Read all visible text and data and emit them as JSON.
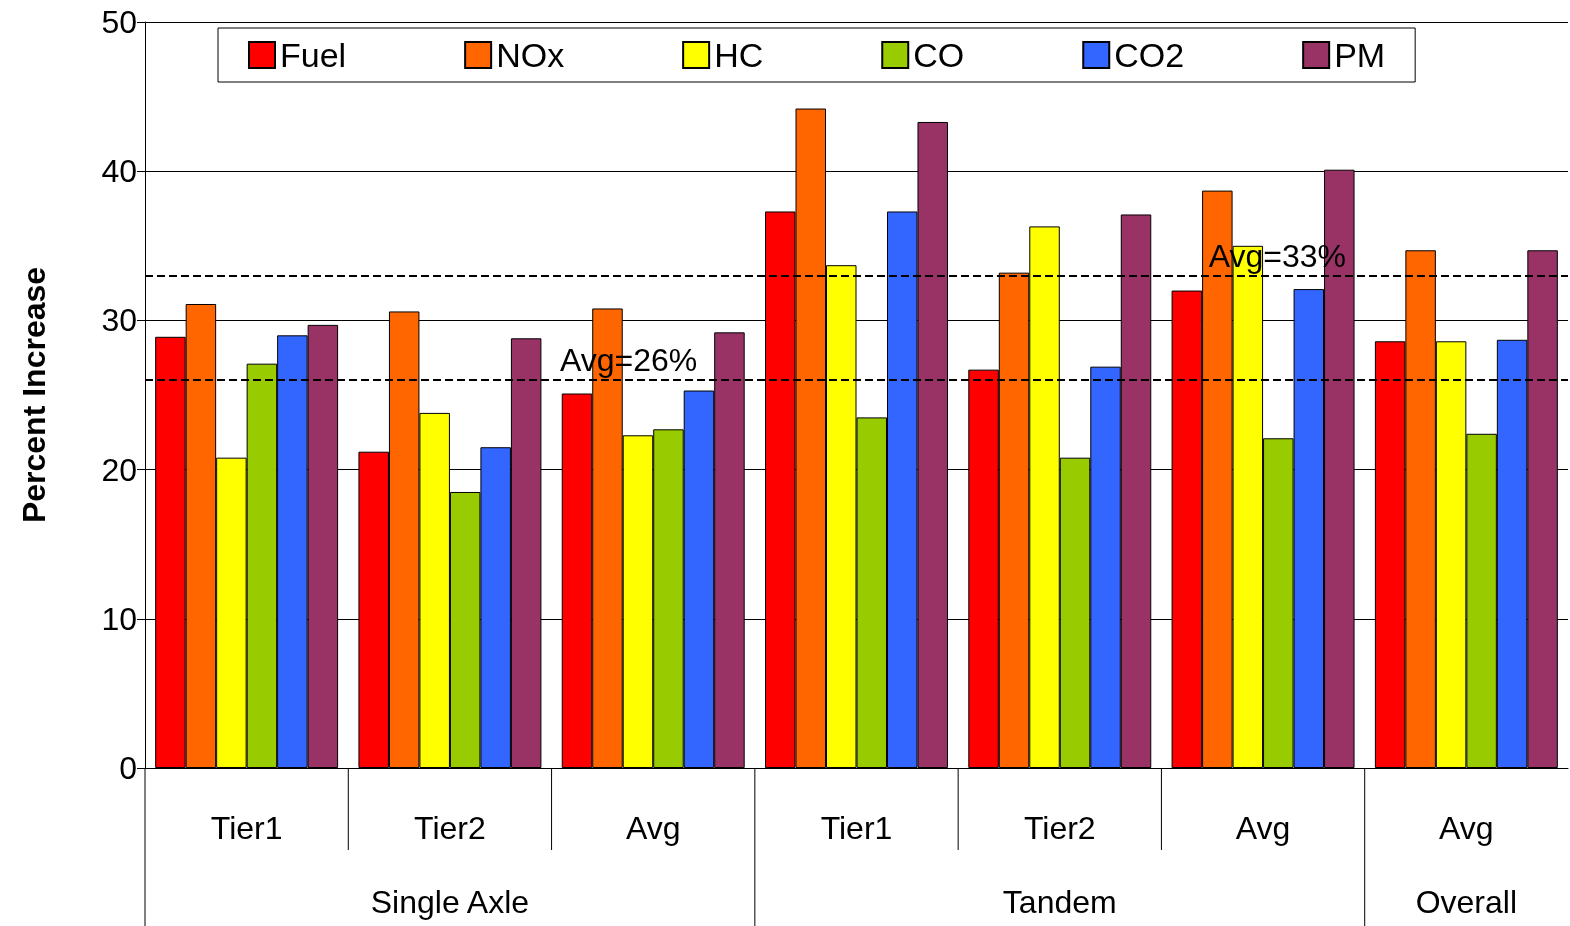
{
  "chart_data": {
    "type": "bar",
    "ylabel": "Percent Increase",
    "categories": [
      "Tier1",
      "Tier2",
      "Avg",
      "Tier1",
      "Tier2",
      "Avg",
      "Avg"
    ],
    "series": [
      {
        "name": "Fuel",
        "color": "#ff0000",
        "values": [
          28.9,
          21.2,
          25.1,
          37.3,
          26.7,
          32.0,
          28.6
        ]
      },
      {
        "name": "NOx",
        "color": "#ff6600",
        "values": [
          31.1,
          30.6,
          30.8,
          44.2,
          33.2,
          38.7,
          34.7
        ]
      },
      {
        "name": "HC",
        "color": "#ffff00",
        "values": [
          20.8,
          23.8,
          22.3,
          33.7,
          36.3,
          35.0,
          28.6
        ]
      },
      {
        "name": "CO",
        "color": "#99cc00",
        "values": [
          27.1,
          18.5,
          22.7,
          23.5,
          20.8,
          22.1,
          22.4
        ]
      },
      {
        "name": "CO2",
        "color": "#3366ff",
        "values": [
          29.0,
          21.5,
          25.3,
          37.3,
          26.9,
          32.1,
          28.7
        ]
      },
      {
        "name": "PM",
        "color": "#993366",
        "values": [
          29.7,
          28.8,
          29.2,
          43.3,
          37.1,
          40.1,
          34.7
        ]
      }
    ],
    "ylim": [
      0,
      50
    ],
    "yticks": [
      0,
      10,
      20,
      30,
      40,
      50
    ],
    "grid": "y",
    "legend": "top",
    "ref_lines": [
      {
        "axis": "y",
        "value": 26,
        "label": "Avg=26%",
        "color": "#000000",
        "line_style": "dashed"
      },
      {
        "axis": "y",
        "value": 33,
        "label": "Avg=33%",
        "color": "#000000",
        "line_style": "dashed"
      }
    ],
    "annotations": [
      "Single Axle",
      "Tandem",
      "Overall"
    ]
  }
}
